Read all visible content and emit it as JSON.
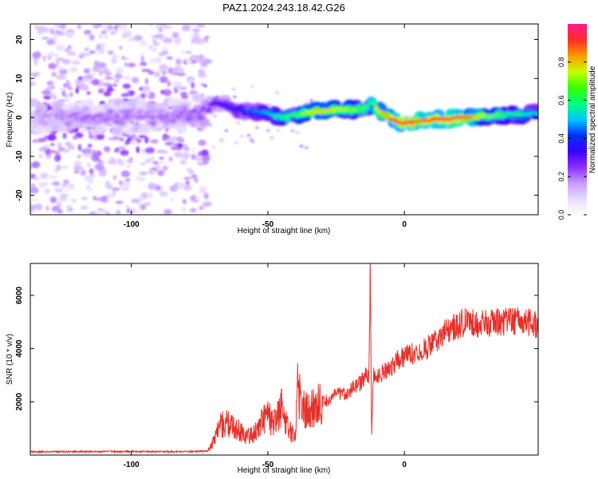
{
  "figure_title": "PAZ1.2024.243.18.42.G26",
  "chart_data": [
    {
      "type": "heatmap",
      "title": "PAZ1.2024.243.18.42.G26",
      "xlabel": "Height of straight line (km)",
      "ylabel": "Frequency (Hz)",
      "xlim": [
        -137,
        49
      ],
      "ylim": [
        -25,
        24
      ],
      "xticks": [
        -100,
        -50,
        0
      ],
      "yticks": [
        -20,
        -10,
        0,
        10,
        20
      ],
      "xtick_labels": [
        "-100",
        "-50",
        "0"
      ],
      "ytick_labels": [
        "-20",
        "-10",
        "0",
        "10",
        "20"
      ],
      "colormap": [
        "#ffffff",
        "#e8dcff",
        "#c79bff",
        "#8c2cff",
        "#3a00ff",
        "#0032ff",
        "#00c8ff",
        "#00ff7a",
        "#39ff00",
        "#c8ff00",
        "#ff9900",
        "#ff2a2a",
        "#ff1a8c"
      ],
      "colorbar": {
        "label": "Normalized spectral amplitude",
        "range": [
          0,
          1
        ],
        "ticks": [
          0.0,
          0.2,
          0.4,
          0.6,
          0.8
        ],
        "tick_labels": [
          "0.0",
          "0.2",
          "0.4",
          "0.6",
          "0.8"
        ]
      },
      "ridge": {
        "x": [
          -137,
          -120,
          -100,
          -85,
          -72,
          -70,
          -65,
          -60,
          -55,
          -50,
          -45,
          -40,
          -35,
          -30,
          -25,
          -20,
          -15,
          -12,
          -10,
          -5,
          0,
          5,
          10,
          15,
          20,
          25,
          30,
          35,
          40,
          45,
          49
        ],
        "frequency": [
          0,
          0.5,
          0,
          0.5,
          2,
          4,
          3,
          2,
          1.5,
          1,
          0,
          0.5,
          1.5,
          1.5,
          2,
          2,
          2,
          4,
          2,
          -0.5,
          -1.5,
          -1,
          -0.5,
          -0.5,
          0,
          0,
          0.5,
          0.5,
          0.8,
          0.8,
          1
        ],
        "amplitude": [
          0.15,
          0.2,
          0.2,
          0.2,
          0.25,
          0.3,
          0.35,
          0.4,
          0.45,
          0.5,
          0.6,
          0.65,
          0.75,
          0.8,
          0.75,
          0.7,
          0.65,
          0.6,
          0.75,
          0.9,
          0.95,
          0.9,
          0.92,
          0.95,
          0.95,
          0.85,
          0.7,
          0.65,
          0.6,
          0.55,
          0.5
        ]
      },
      "noise_region": {
        "x_range": [
          -137,
          -72
        ],
        "frequency_range": [
          -25,
          24
        ]
      },
      "grid": false,
      "legend": "colorbar-right"
    },
    {
      "type": "line",
      "xlabel": "Height of straight line (km)",
      "ylabel": "SNR (10 * v/v)",
      "xlim": [
        -137,
        49
      ],
      "ylim": [
        0,
        7200
      ],
      "xticks": [
        -100,
        -50,
        0
      ],
      "yticks": [
        2000,
        4000,
        6000
      ],
      "xtick_labels": [
        "-100",
        "-50",
        "0"
      ],
      "ytick_labels": [
        "2000",
        "4000",
        "6000"
      ],
      "series": [
        {
          "color": "#e8302a",
          "x": [
            -137,
            -120,
            -100,
            -80,
            -72,
            -70,
            -68,
            -65,
            -62,
            -60,
            -58,
            -55,
            -52,
            -50,
            -48,
            -45,
            -42,
            -40,
            -39,
            -38,
            -37,
            -35,
            -32,
            -30,
            -27,
            -25,
            -22,
            -20,
            -18,
            -16,
            -14,
            -13,
            -12.5,
            -12,
            -11.5,
            -10,
            -8,
            -5,
            -2,
            0,
            2,
            5,
            8,
            10,
            12,
            15,
            18,
            20,
            22,
            25,
            28,
            30,
            35,
            40,
            45,
            49
          ],
          "y": [
            120,
            130,
            130,
            130,
            150,
            500,
            1100,
            1200,
            1000,
            900,
            700,
            800,
            1300,
            1500,
            1100,
            1800,
            900,
            700,
            2900,
            1900,
            1800,
            1600,
            1900,
            2000,
            2100,
            2300,
            2300,
            2400,
            2600,
            2700,
            3000,
            3000,
            7100,
            500,
            3000,
            2900,
            3100,
            3300,
            3600,
            3700,
            3800,
            3900,
            4000,
            4200,
            4300,
            4600,
            4800,
            4900,
            5000,
            5000,
            4900,
            4950,
            5000,
            5050,
            5000,
            4900
          ]
        }
      ],
      "grid": false
    }
  ]
}
